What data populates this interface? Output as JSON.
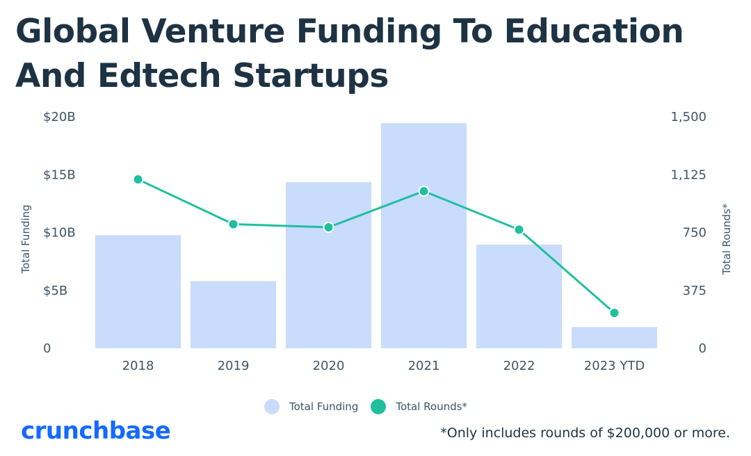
{
  "title": "Global Venture Funding To Education And Edtech Startups",
  "footnote": "*Only includes rounds of $200,000 or more.",
  "logo_text": "crunchbase",
  "colors": {
    "bar": "#c9dcfb",
    "line": "#1fbf9f",
    "title": "#1d3344",
    "axis_text": "#3f5566",
    "logo": "#146aff"
  },
  "chart_data": {
    "type": "bar",
    "categories": [
      "2018",
      "2019",
      "2020",
      "2021",
      "2022",
      "2023 YTD"
    ],
    "series": [
      {
        "name": "Total Funding",
        "type": "bar",
        "axis": "left",
        "values": [
          9.6,
          5.7,
          14.1,
          19.1,
          8.8,
          1.8
        ]
      },
      {
        "name": "Total Rounds*",
        "type": "line",
        "axis": "right",
        "values": [
          1075,
          790,
          770,
          1000,
          755,
          225
        ]
      }
    ],
    "y_left": {
      "label": "Total Funding",
      "ticks": [
        "0",
        "$5B",
        "$10B",
        "$15B",
        "$20B"
      ],
      "range": [
        0,
        20
      ]
    },
    "y_right": {
      "label": "Total Rounds*",
      "ticks": [
        "0",
        "375",
        "750",
        "1,125",
        "1,500"
      ],
      "range": [
        0,
        1500
      ]
    },
    "grid": false,
    "legend_position": "bottom-center"
  }
}
